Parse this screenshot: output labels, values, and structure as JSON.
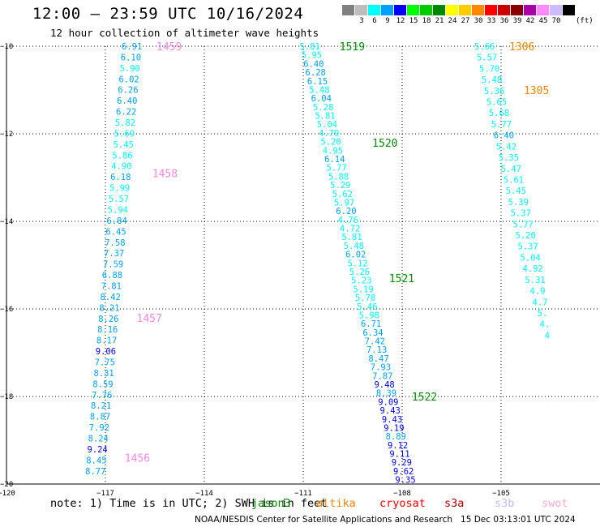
{
  "header": {
    "title": "12:00 – 23:59 UTC 10/16/2024",
    "subtitle": "12 hour collection of altimeter wave heights"
  },
  "colorbar": {
    "unit": "(ft)",
    "cells": [
      {
        "label": "",
        "color": "#7f7f7f"
      },
      {
        "label": "3",
        "color": "#bdbdbd"
      },
      {
        "label": "6",
        "color": "#00ffff"
      },
      {
        "label": "9",
        "color": "#00a0ff"
      },
      {
        "label": "12",
        "color": "#0000ff"
      },
      {
        "label": "15",
        "color": "#00ff00"
      },
      {
        "label": "18",
        "color": "#00cc00"
      },
      {
        "label": "21",
        "color": "#008800"
      },
      {
        "label": "24",
        "color": "#ffff00"
      },
      {
        "label": "27",
        "color": "#ffcc00"
      },
      {
        "label": "30",
        "color": "#ff8800"
      },
      {
        "label": "33",
        "color": "#ff0000"
      },
      {
        "label": "36",
        "color": "#cc0000"
      },
      {
        "label": "39",
        "color": "#880000"
      },
      {
        "label": "42",
        "color": "#aa00aa"
      },
      {
        "label": "45",
        "color": "#ff88ff"
      },
      {
        "label": "70",
        "color": "#ccbbff"
      },
      {
        "label": "",
        "color": "#000000"
      }
    ]
  },
  "map": {
    "lon_range": [
      -120,
      -102
    ],
    "lat_range": [
      -20,
      -10
    ],
    "lon_ticks": [
      "−120",
      "−117",
      "−114",
      "−111",
      "−108",
      "−105"
    ],
    "lon_tick_values": [
      -120,
      -117,
      -114,
      -111,
      -108,
      -105
    ],
    "lat_ticks": [
      "−10",
      "−12",
      "−14",
      "−16",
      "−18",
      "−20"
    ],
    "lat_tick_values": [
      -10,
      -12,
      -14,
      -16,
      -18,
      -20
    ],
    "grid": "dotted"
  },
  "chart_data": {
    "type": "scatter",
    "title": "12:00 – 23:59 UTC 10/16/2024",
    "subtitle": "12 hour collection of altimeter wave heights",
    "units": "ft",
    "tracks": [
      {
        "lon_start": -116.2,
        "lon_end": -117.3,
        "lat_start": -10.0,
        "lat_end": -19.7,
        "values": [
          "6.91",
          "6.10",
          "5.90",
          "6.02",
          "6.26",
          "6.40",
          "6.22",
          "5.82",
          "5.69",
          "5.45",
          "5.86",
          "4.90",
          "6.18",
          "5.99",
          "5.57",
          "5.94",
          "6.84",
          "6.45",
          "7.58",
          "7.37",
          "7.59",
          "6.88",
          "7.81",
          "8.42",
          "8.21",
          "8.26",
          "8.16",
          "8.17",
          "9.06",
          "7.75",
          "8.31",
          "8.59",
          "7.76",
          "8.21",
          "8.87",
          "7.92",
          "8.24",
          "9.24",
          "8.45",
          "8.77"
        ],
        "labels": [
          {
            "text": "1459",
            "lat": -10.0,
            "lon_offset": 0.75
          },
          {
            "text": "1458",
            "lat": -12.9,
            "lon_offset": 0.95
          },
          {
            "text": "1457",
            "lat": -16.2,
            "lon_offset": 0.85
          },
          {
            "text": "1456",
            "lat": -19.4,
            "lon_offset": 0.85
          }
        ],
        "label_color": "#ff88dd"
      },
      {
        "lon_start": -110.8,
        "lon_end": -107.9,
        "lat_start": -10.0,
        "lat_end": -19.9,
        "values": [
          "5.81",
          "5.95",
          "6.40",
          "6.28",
          "6.15",
          "5.48",
          "6.04",
          "5.28",
          "5.81",
          "5.04",
          "4.79",
          "5.20",
          "4.95",
          "6.14",
          "5.77",
          "5.88",
          "5.29",
          "5.62",
          "5.97",
          "6.20",
          "4.76",
          "4.72",
          "5.81",
          "5.48",
          "6.02",
          "5.12",
          "5.26",
          "5.23",
          "5.19",
          "5.78",
          "5.46",
          "5.98",
          "6.71",
          "6.34",
          "7.42",
          "7.13",
          "8.47",
          "7.93",
          "7.87",
          "9.48",
          "8.39",
          "9.09",
          "9.43",
          "9.43",
          "9.19",
          "8.89",
          "9.12",
          "9.11",
          "9.29",
          "9.62",
          "9.35"
        ],
        "labels": [
          {
            "text": "1519",
            "lat": -10.0,
            "lon_offset": 0.9
          },
          {
            "text": "1520",
            "lat": -12.2,
            "lon_offset": 1.25
          },
          {
            "text": "1521",
            "lat": -15.3,
            "lon_offset": 0.85
          },
          {
            "text": "1522",
            "lat": -18.0,
            "lon_offset": 0.75
          }
        ],
        "label_color": "#008800"
      },
      {
        "lon_start": -105.5,
        "lon_end": -103.6,
        "lat_start": -10.0,
        "lat_end": -16.6,
        "values": [
          "5.66",
          "5.57",
          "5.70",
          "5.48",
          "5.36",
          "5.65",
          "5.68",
          "5.77",
          "6.40",
          "5.42",
          "5.35",
          "5.47",
          "5.61",
          "5.45",
          "5.39",
          "5.37",
          "5.77",
          "5.20",
          "5.37",
          "5.04",
          "4.92",
          "5.31",
          "4.9",
          "4.7",
          "5.",
          "4.",
          "4"
        ],
        "labels": [
          {
            "text": "1306",
            "lat": -10.0,
            "lon_offset": 0.75
          },
          {
            "text": "1305",
            "lat": -11.0,
            "lon_offset": 0.9
          }
        ],
        "label_color": "#ee8800"
      }
    ]
  },
  "footer": {
    "note": "note: 1) Time is in UTC; 2) SWH is in feet",
    "satellites": [
      {
        "name": "jason3",
        "color": "#008800",
        "x": 310
      },
      {
        "name": "altika",
        "color": "#ee8800",
        "x": 390
      },
      {
        "name": "cryosat",
        "color": "#ff0000",
        "x": 468
      },
      {
        "name": "s3a",
        "color": "#aa0000",
        "x": 548
      },
      {
        "name": "s3b",
        "color": "#bbbbee",
        "x": 610
      },
      {
        "name": "swot",
        "color": "#ffaacc",
        "x": 668
      }
    ],
    "credit": "NOAA/NESDIS Center for Satellite Applications and Research   15 Dec 03:13:01 UTC 2024"
  }
}
